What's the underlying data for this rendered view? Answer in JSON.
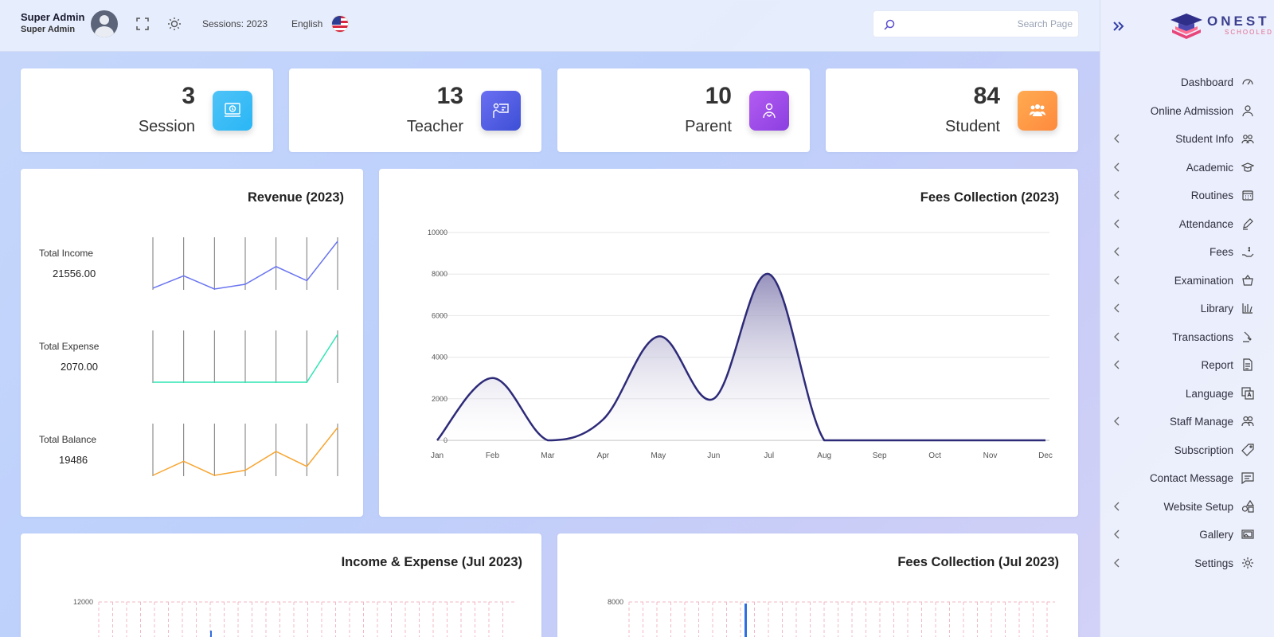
{
  "topbar": {
    "user_name": "Super Admin",
    "user_role": "Super Admin",
    "session_label": "Sessions: 2023",
    "language": "English",
    "search_placeholder": "Search Page"
  },
  "sidebar": {
    "logo_text": "ONEST",
    "logo_sub": "SCHOOLED",
    "items": [
      {
        "label": "Dashboard",
        "icon": "dashboard-icon",
        "has_submenu": false
      },
      {
        "label": "Online Admission",
        "icon": "user-icon",
        "has_submenu": false
      },
      {
        "label": "Student Info",
        "icon": "users-icon",
        "has_submenu": true
      },
      {
        "label": "Academic",
        "icon": "graduation-cap-icon",
        "has_submenu": true
      },
      {
        "label": "Routines",
        "icon": "calendar-icon",
        "has_submenu": true
      },
      {
        "label": "Attendance",
        "icon": "pen-icon",
        "has_submenu": true
      },
      {
        "label": "Fees",
        "icon": "hand-dollar-icon",
        "has_submenu": true
      },
      {
        "label": "Examination",
        "icon": "exam-basket-icon",
        "has_submenu": true
      },
      {
        "label": "Library",
        "icon": "library-icon",
        "has_submenu": true
      },
      {
        "label": "Transactions",
        "icon": "transactions-icon",
        "has_submenu": true
      },
      {
        "label": "Report",
        "icon": "report-icon",
        "has_submenu": true
      },
      {
        "label": "Language",
        "icon": "language-icon",
        "has_submenu": false
      },
      {
        "label": "Staff Manage",
        "icon": "staff-icon",
        "has_submenu": true
      },
      {
        "label": "Subscription",
        "icon": "tag-icon",
        "has_submenu": false
      },
      {
        "label": "Contact Message",
        "icon": "message-icon",
        "has_submenu": false
      },
      {
        "label": "Website Setup",
        "icon": "shapes-icon",
        "has_submenu": true
      },
      {
        "label": "Gallery",
        "icon": "gallery-icon",
        "has_submenu": true
      },
      {
        "label": "Settings",
        "icon": "gear-icon",
        "has_submenu": true
      }
    ]
  },
  "stats": [
    {
      "value": "3",
      "label": "Session",
      "icon": "session-icon",
      "color_from": "#4fc3f7",
      "color_to": "#29b6f6"
    },
    {
      "value": "13",
      "label": "Teacher",
      "icon": "teacher-icon",
      "color_from": "#6b6ff2",
      "color_to": "#3d4fd6"
    },
    {
      "value": "10",
      "label": "Parent",
      "icon": "parent-icon",
      "color_from": "#b35cf2",
      "color_to": "#8b3fe0"
    },
    {
      "value": "84",
      "label": "Student",
      "icon": "student-icon",
      "color_from": "#ffab52",
      "color_to": "#ff8a3d"
    }
  ],
  "revenue": {
    "title": "Revenue (2023)",
    "rows": [
      {
        "label": "Total Income",
        "value": "21556.00",
        "color": "#6a75f0",
        "series": [
          3,
          47,
          0,
          17,
          80,
          30,
          170
        ]
      },
      {
        "label": "Total Expense",
        "value": "2070.00",
        "color": "#2ee6b4",
        "series": [
          0,
          0,
          0,
          0,
          0,
          0,
          2070
        ]
      },
      {
        "label": "Total Balance",
        "value": "19486",
        "color": "#f7a530",
        "series": [
          0,
          47,
          0,
          17,
          80,
          30,
          160
        ]
      }
    ]
  },
  "fees_year": {
    "title": "Fees Collection (2023)"
  },
  "income_expense": {
    "title": "Income & Expense (Jul 2023)",
    "top_tick": "12000"
  },
  "fees_month": {
    "title": "Fees Collection (Jul 2023)",
    "top_tick": "8000"
  },
  "colors": {
    "accent": "#2e2a7a",
    "fee_line": "#2d2a78",
    "fee_fill_top": "#8a85b5",
    "bar_blue": "#2f6fe0"
  },
  "chart_data": [
    {
      "type": "area",
      "title": "Fees Collection (2023)",
      "categories": [
        "Jan",
        "Feb",
        "Mar",
        "Apr",
        "May",
        "Jun",
        "Jul",
        "Aug",
        "Sep",
        "Oct",
        "Nov",
        "Dec"
      ],
      "values": [
        0,
        3000,
        0,
        1000,
        5000,
        2000,
        8000,
        0,
        0,
        0,
        0,
        0
      ],
      "yticks": [
        0,
        2000,
        4000,
        6000,
        8000,
        10000
      ],
      "ylim": [
        0,
        10000
      ],
      "grid": "horizontal"
    }
  ]
}
